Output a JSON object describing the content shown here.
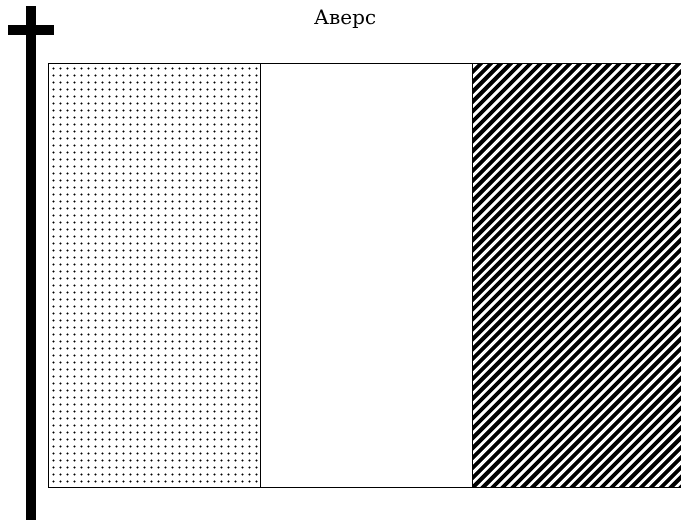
{
  "title": "Аверс",
  "flag": {
    "stripes": [
      {
        "pattern": "dotted"
      },
      {
        "pattern": "plain"
      },
      {
        "pattern": "diagonal-hatched"
      }
    ]
  },
  "colors": {
    "ink": "#000000",
    "background": "#ffffff"
  }
}
